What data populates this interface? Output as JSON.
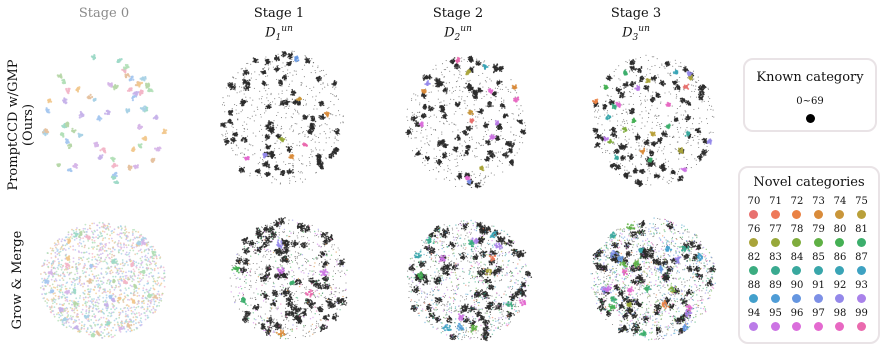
{
  "chart_data": {
    "type": "scatter",
    "columns": [
      {
        "title": "Stage 0",
        "subtitle": ""
      },
      {
        "title": "Stage 1",
        "subtitle": "D",
        "sub": "1",
        "sup": "un"
      },
      {
        "title": "Stage 2",
        "subtitle": "D",
        "sub": "2",
        "sup": "un"
      },
      {
        "title": "Stage 3",
        "subtitle": "D",
        "sub": "3",
        "sup": "un"
      }
    ],
    "rows": [
      {
        "label_line1": "PromptCCD w/GMP",
        "label_line2": "(Ours)"
      },
      {
        "label_line1": "Grow & Merge",
        "label_line2": ""
      }
    ],
    "legend": {
      "known": {
        "title": "Known category",
        "range": "0~69",
        "color": "#000000"
      },
      "novel": {
        "title": "Novel categories",
        "categories": [
          {
            "id": "70",
            "color": "#e8716f"
          },
          {
            "id": "71",
            "color": "#ee7a5a"
          },
          {
            "id": "72",
            "color": "#ea8244"
          },
          {
            "id": "73",
            "color": "#d98b3a"
          },
          {
            "id": "74",
            "color": "#c9963a"
          },
          {
            "id": "75",
            "color": "#b9a03a"
          },
          {
            "id": "76",
            "color": "#a9a43a"
          },
          {
            "id": "77",
            "color": "#97a83a"
          },
          {
            "id": "78",
            "color": "#7fac3c"
          },
          {
            "id": "79",
            "color": "#5fb044"
          },
          {
            "id": "80",
            "color": "#45b054"
          },
          {
            "id": "81",
            "color": "#3cae6c"
          },
          {
            "id": "82",
            "color": "#3bac80"
          },
          {
            "id": "83",
            "color": "#3aaa90"
          },
          {
            "id": "84",
            "color": "#39a89e"
          },
          {
            "id": "85",
            "color": "#39a6aa"
          },
          {
            "id": "86",
            "color": "#3aa4b6"
          },
          {
            "id": "87",
            "color": "#3ea2c2"
          },
          {
            "id": "88",
            "color": "#43a0cc"
          },
          {
            "id": "89",
            "color": "#4f9cd6"
          },
          {
            "id": "90",
            "color": "#6596e0"
          },
          {
            "id": "91",
            "color": "#7d90e6"
          },
          {
            "id": "92",
            "color": "#9488ea"
          },
          {
            "id": "93",
            "color": "#a982ea"
          },
          {
            "id": "94",
            "color": "#bb7ce8"
          },
          {
            "id": "95",
            "color": "#cc74e4"
          },
          {
            "id": "96",
            "color": "#da6edc"
          },
          {
            "id": "97",
            "color": "#e46ad0"
          },
          {
            "id": "98",
            "color": "#e868c2"
          },
          {
            "id": "99",
            "color": "#ea6aae"
          }
        ]
      }
    }
  }
}
